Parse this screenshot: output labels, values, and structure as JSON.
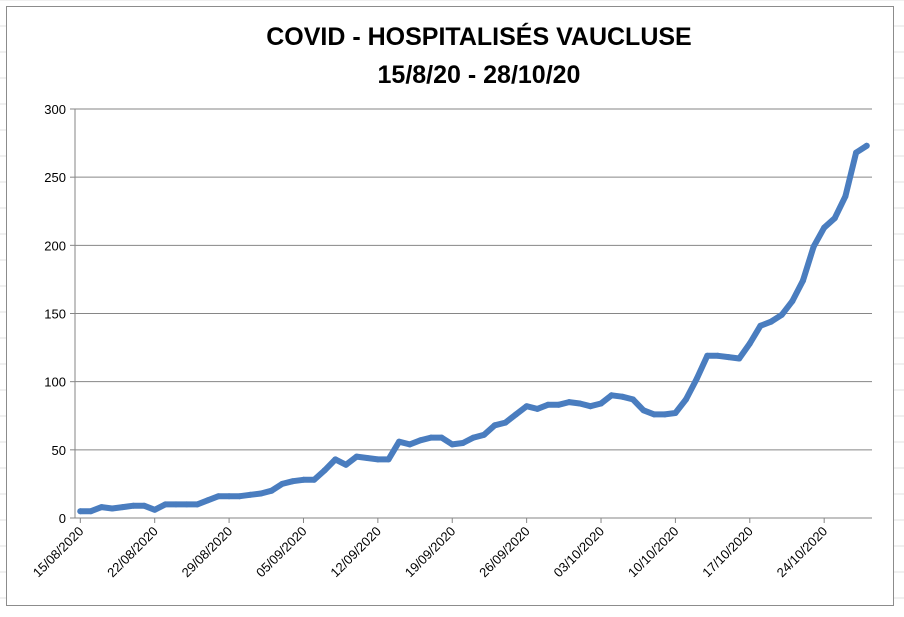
{
  "chart_data": {
    "type": "line",
    "title": "COVID - HOSPITALISÉS VAUCLUSE",
    "subtitle": "15/8/20 - 28/10/20",
    "xlabel": "",
    "ylabel": "",
    "ylim": [
      0,
      300
    ],
    "yticks": [
      0,
      50,
      100,
      150,
      200,
      250,
      300
    ],
    "grid": true,
    "legend": "none",
    "x_tick_labels": [
      "15/08/2020",
      "22/08/2020",
      "29/08/2020",
      "05/09/2020",
      "12/09/2020",
      "19/09/2020",
      "26/09/2020",
      "03/10/2020",
      "10/10/2020",
      "17/10/2020",
      "24/10/2020"
    ],
    "x": [
      "15/08/2020",
      "16/08/2020",
      "17/08/2020",
      "18/08/2020",
      "19/08/2020",
      "20/08/2020",
      "21/08/2020",
      "22/08/2020",
      "23/08/2020",
      "24/08/2020",
      "25/08/2020",
      "26/08/2020",
      "27/08/2020",
      "28/08/2020",
      "29/08/2020",
      "30/08/2020",
      "31/08/2020",
      "01/09/2020",
      "02/09/2020",
      "03/09/2020",
      "04/09/2020",
      "05/09/2020",
      "06/09/2020",
      "07/09/2020",
      "08/09/2020",
      "09/09/2020",
      "10/09/2020",
      "11/09/2020",
      "12/09/2020",
      "13/09/2020",
      "14/09/2020",
      "15/09/2020",
      "16/09/2020",
      "17/09/2020",
      "18/09/2020",
      "19/09/2020",
      "20/09/2020",
      "21/09/2020",
      "22/09/2020",
      "23/09/2020",
      "24/09/2020",
      "25/09/2020",
      "26/09/2020",
      "27/09/2020",
      "28/09/2020",
      "29/09/2020",
      "30/09/2020",
      "01/10/2020",
      "02/10/2020",
      "03/10/2020",
      "04/10/2020",
      "05/10/2020",
      "06/10/2020",
      "07/10/2020",
      "08/10/2020",
      "09/10/2020",
      "10/10/2020",
      "11/10/2020",
      "12/10/2020",
      "13/10/2020",
      "14/10/2020",
      "15/10/2020",
      "16/10/2020",
      "17/10/2020",
      "18/10/2020",
      "19/10/2020",
      "20/10/2020",
      "21/10/2020",
      "22/10/2020",
      "23/10/2020",
      "24/10/2020",
      "25/10/2020",
      "26/10/2020",
      "27/10/2020",
      "28/10/2020"
    ],
    "series": [
      {
        "values": [
          5,
          5,
          8,
          7,
          8,
          9,
          9,
          6,
          10,
          10,
          10,
          10,
          13,
          16,
          16,
          16,
          17,
          18,
          20,
          25,
          27,
          28,
          28,
          35,
          43,
          39,
          45,
          44,
          43,
          43,
          56,
          54,
          57,
          59,
          59,
          54,
          55,
          59,
          61,
          68,
          70,
          76,
          82,
          80,
          83,
          83,
          85,
          84,
          82,
          84,
          90,
          89,
          87,
          79,
          76,
          76,
          77,
          87,
          102,
          119,
          119,
          118,
          117,
          128,
          141,
          144,
          149,
          159,
          174,
          199,
          213,
          220,
          236,
          268,
          273
        ],
        "color": "#4a7dbf"
      }
    ]
  }
}
